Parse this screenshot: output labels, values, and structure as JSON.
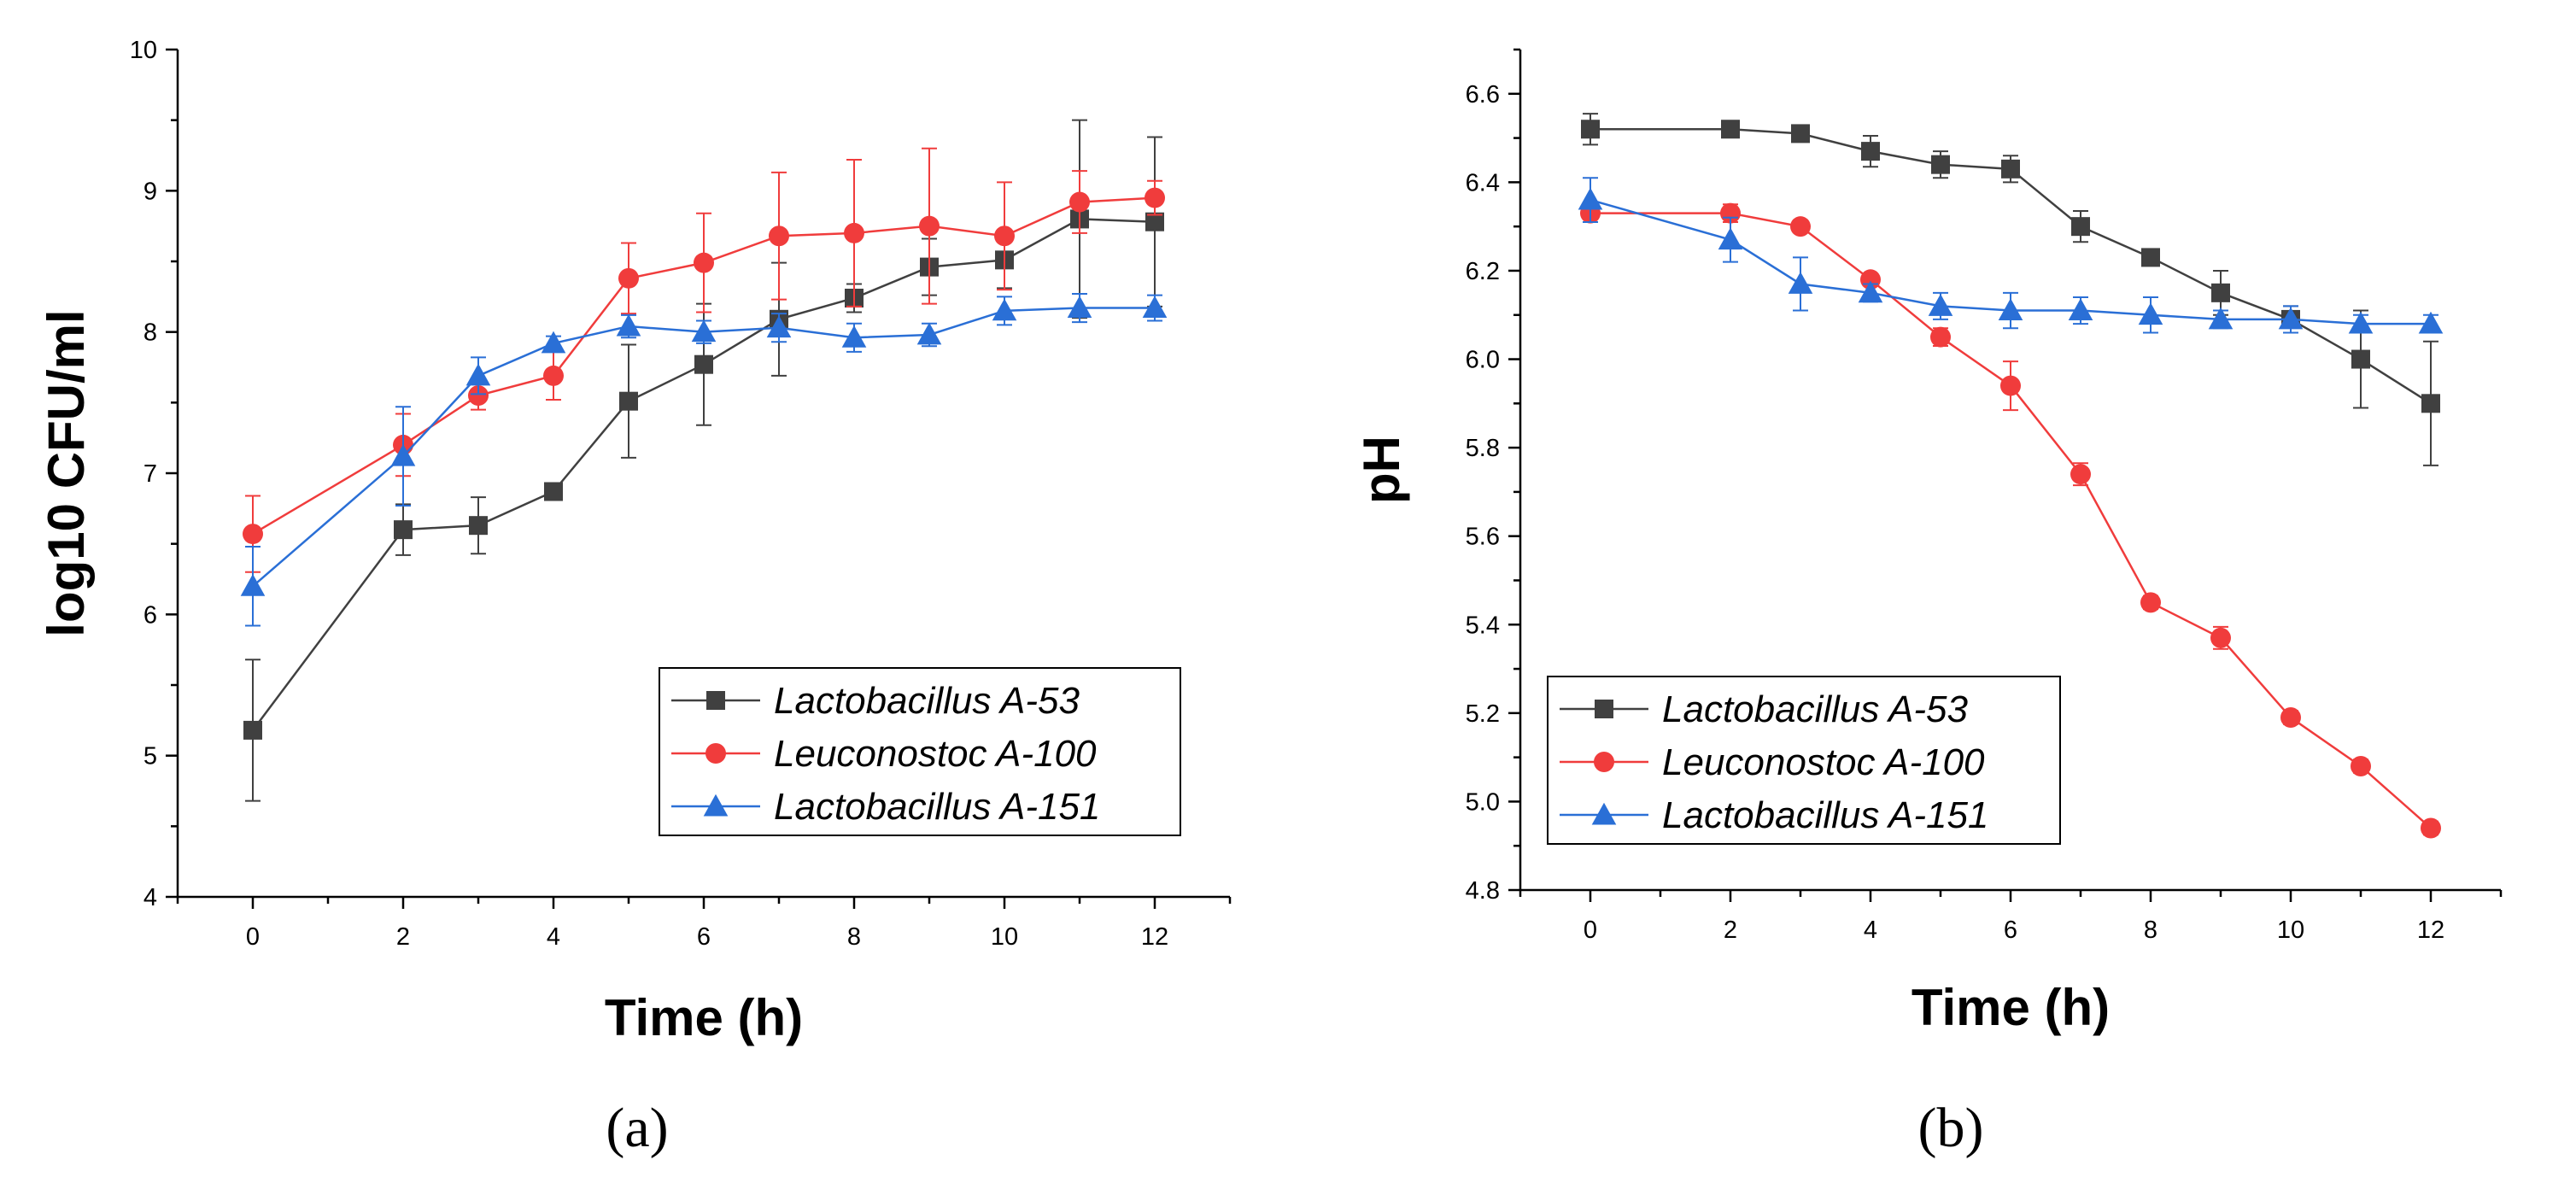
{
  "chart_data": [
    {
      "type": "line",
      "panel_label": "(a)",
      "xlabel": "Time (h)",
      "ylabel": "log10 CFU/ml",
      "xlim": [
        -1,
        13
      ],
      "ylim": [
        4,
        10
      ],
      "xticks": [
        0,
        2,
        4,
        6,
        8,
        10,
        12
      ],
      "yticks": [
        4,
        5,
        6,
        7,
        8,
        9,
        10
      ],
      "legend_position": "bottom-right",
      "series": [
        {
          "name": "Lactobacillus A-53",
          "color": "#404040",
          "marker": "square",
          "x": [
            0,
            2,
            3,
            4,
            5,
            6,
            7,
            8,
            9,
            10,
            11,
            12
          ],
          "y": [
            5.18,
            6.6,
            6.63,
            6.87,
            7.51,
            7.77,
            8.09,
            8.24,
            8.46,
            8.51,
            8.8,
            8.78
          ],
          "err": [
            0.5,
            0.18,
            0.2,
            0.05,
            0.4,
            0.43,
            0.4,
            0.1,
            0.2,
            0.2,
            0.7,
            0.6
          ]
        },
        {
          "name": "Leuconostoc A-100",
          "color": "#f03c3c",
          "marker": "circle",
          "x": [
            0,
            2,
            3,
            4,
            5,
            6,
            7,
            8,
            9,
            10,
            11,
            12
          ],
          "y": [
            6.57,
            7.2,
            7.55,
            7.69,
            8.38,
            8.49,
            8.68,
            8.7,
            8.75,
            8.68,
            8.92,
            8.95
          ],
          "err": [
            0.27,
            0.22,
            0.1,
            0.17,
            0.25,
            0.35,
            0.45,
            0.52,
            0.55,
            0.38,
            0.22,
            0.12
          ]
        },
        {
          "name": "Lactobacillus A-151",
          "color": "#2a6fd6",
          "marker": "triangle",
          "x": [
            0,
            2,
            3,
            4,
            5,
            6,
            7,
            8,
            9,
            10,
            11,
            12
          ],
          "y": [
            6.2,
            7.12,
            7.69,
            7.92,
            8.04,
            8.0,
            8.03,
            7.96,
            7.98,
            8.15,
            8.17,
            8.17
          ],
          "err": [
            0.28,
            0.35,
            0.13,
            0.05,
            0.08,
            0.08,
            0.1,
            0.1,
            0.08,
            0.1,
            0.1,
            0.09
          ]
        }
      ]
    },
    {
      "type": "line",
      "panel_label": "(b)",
      "xlabel": "Time (h)",
      "ylabel": "pH",
      "xlim": [
        -1,
        13
      ],
      "ylim": [
        4.8,
        6.7
      ],
      "xticks": [
        0,
        2,
        4,
        6,
        8,
        10,
        12
      ],
      "yticks": [
        4.8,
        5.0,
        5.2,
        5.4,
        5.6,
        5.8,
        6.0,
        6.2,
        6.4,
        6.6
      ],
      "legend_position": "bottom-left",
      "series": [
        {
          "name": "Lactobacillus A-53",
          "color": "#404040",
          "marker": "square",
          "x": [
            0,
            2,
            3,
            4,
            5,
            6,
            7,
            8,
            9,
            10,
            11,
            12
          ],
          "y": [
            6.52,
            6.52,
            6.51,
            6.47,
            6.44,
            6.43,
            6.3,
            6.23,
            6.15,
            6.09,
            6.0,
            5.9
          ],
          "err": [
            0.035,
            0.01,
            0.015,
            0.035,
            0.03,
            0.03,
            0.035,
            0.01,
            0.05,
            0.03,
            0.11,
            0.14
          ]
        },
        {
          "name": "Leuconostoc A-100",
          "color": "#f03c3c",
          "marker": "circle",
          "x": [
            0,
            2,
            3,
            4,
            5,
            6,
            7,
            8,
            9,
            10,
            11,
            12
          ],
          "y": [
            6.33,
            6.33,
            6.3,
            6.18,
            6.05,
            5.94,
            5.74,
            5.45,
            5.37,
            5.19,
            5.08,
            4.94
          ],
          "err": [
            0.02,
            0.02,
            0.01,
            0.01,
            0.02,
            0.055,
            0.025,
            0.015,
            0.025,
            0.015,
            0.015,
            0.015
          ]
        },
        {
          "name": "Lactobacillus A-151",
          "color": "#2a6fd6",
          "marker": "triangle",
          "x": [
            0,
            2,
            3,
            4,
            5,
            6,
            7,
            8,
            9,
            10,
            11,
            12
          ],
          "y": [
            6.36,
            6.27,
            6.17,
            6.15,
            6.12,
            6.11,
            6.11,
            6.1,
            6.09,
            6.09,
            6.08,
            6.08
          ],
          "err": [
            0.05,
            0.05,
            0.06,
            0.02,
            0.03,
            0.04,
            0.03,
            0.04,
            0.02,
            0.03,
            0.02,
            0.02
          ]
        }
      ]
    }
  ]
}
